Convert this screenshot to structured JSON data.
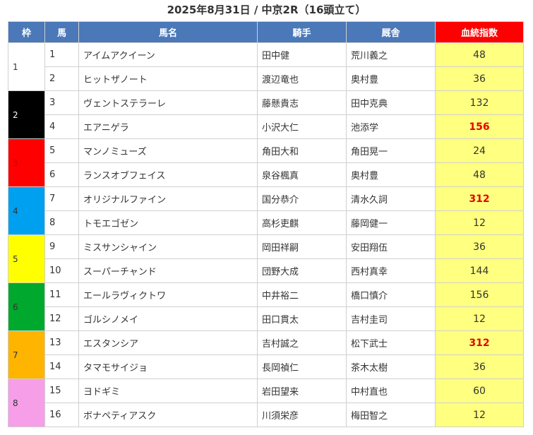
{
  "title": "2025年8月31日 / 中京2R（16頭立て）",
  "headers": [
    "枠",
    "馬",
    "馬名",
    "騎手",
    "厩舎",
    "血統指数"
  ],
  "colors": {
    "header_bg": "#4a78b8",
    "index_header_bg": "#ff0000",
    "index_cell_bg": "#ffff80",
    "highlight_text": "#e60000"
  },
  "waku": [
    {
      "label": "1",
      "color": "#ffffff",
      "text_color": "#333333"
    },
    {
      "label": "2",
      "color": "#000000",
      "text_color": "#ffffff"
    },
    {
      "label": "3",
      "color": "#ff0000",
      "text_color": "#cc0000"
    },
    {
      "label": "4",
      "color": "#00a0f0",
      "text_color": "#333333"
    },
    {
      "label": "5",
      "color": "#ffff00",
      "text_color": "#333333"
    },
    {
      "label": "6",
      "color": "#00a82d",
      "text_color": "#333333"
    },
    {
      "label": "7",
      "color": "#ffb400",
      "text_color": "#333333"
    },
    {
      "label": "8",
      "color": "#f79ee8",
      "text_color": "#333333"
    }
  ],
  "rows": [
    {
      "num": "1",
      "horse": "アイムアクイーン",
      "jockey": "田中健",
      "trainer": "荒川義之",
      "index": "48",
      "highlight": false
    },
    {
      "num": "2",
      "horse": "ヒットザノート",
      "jockey": "渡辺竜也",
      "trainer": "奥村豊",
      "index": "36",
      "highlight": false
    },
    {
      "num": "3",
      "horse": "ヴェントステラーレ",
      "jockey": "藤懸貴志",
      "trainer": "田中克典",
      "index": "132",
      "highlight": false
    },
    {
      "num": "4",
      "horse": "エアニゲラ",
      "jockey": "小沢大仁",
      "trainer": "池添学",
      "index": "156",
      "highlight": true
    },
    {
      "num": "5",
      "horse": "マンノミューズ",
      "jockey": "角田大和",
      "trainer": "角田晃一",
      "index": "24",
      "highlight": false
    },
    {
      "num": "6",
      "horse": "ランスオブフェイス",
      "jockey": "泉谷楓真",
      "trainer": "奥村豊",
      "index": "48",
      "highlight": false
    },
    {
      "num": "7",
      "horse": "オリジナルファイン",
      "jockey": "国分恭介",
      "trainer": "清水久詞",
      "index": "312",
      "highlight": true
    },
    {
      "num": "8",
      "horse": "トモエゴゼン",
      "jockey": "高杉吏麒",
      "trainer": "藤岡健一",
      "index": "12",
      "highlight": false
    },
    {
      "num": "9",
      "horse": "ミスサンシャイン",
      "jockey": "岡田祥嗣",
      "trainer": "安田翔伍",
      "index": "36",
      "highlight": false
    },
    {
      "num": "10",
      "horse": "スーパーチャンド",
      "jockey": "団野大成",
      "trainer": "西村真幸",
      "index": "144",
      "highlight": false
    },
    {
      "num": "11",
      "horse": "エールラヴィクトワ",
      "jockey": "中井裕二",
      "trainer": "橋口慎介",
      "index": "156",
      "highlight": false
    },
    {
      "num": "12",
      "horse": "ゴルシノメイ",
      "jockey": "田口貫太",
      "trainer": "吉村圭司",
      "index": "12",
      "highlight": false
    },
    {
      "num": "13",
      "horse": "エスタンシア",
      "jockey": "吉村誠之",
      "trainer": "松下武士",
      "index": "312",
      "highlight": true
    },
    {
      "num": "14",
      "horse": "タマモサイジョ",
      "jockey": "長岡禎仁",
      "trainer": "茶木太樹",
      "index": "36",
      "highlight": false
    },
    {
      "num": "15",
      "horse": "ヨドギミ",
      "jockey": "岩田望来",
      "trainer": "中村直也",
      "index": "60",
      "highlight": false
    },
    {
      "num": "16",
      "horse": "ボナペティアスク",
      "jockey": "川須栄彦",
      "trainer": "梅田智之",
      "index": "12",
      "highlight": false
    }
  ]
}
